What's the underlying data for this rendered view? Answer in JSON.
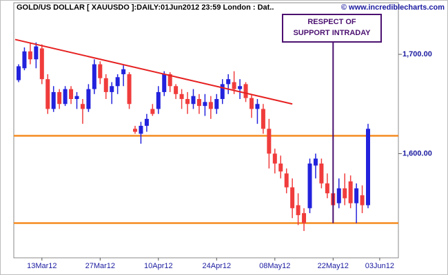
{
  "chart_data": {
    "type": "candlestick",
    "title": "GOLD/US DOLLAR [ XAUUSDO ]:DAILY:01Jun2012 23:59 London : Dat..",
    "subtitle": "© www.incrediblecharts.com",
    "categories": [
      null,
      null,
      null,
      null,
      "13Mar12",
      null,
      null,
      null,
      null,
      null,
      null,
      null,
      null,
      null,
      "27Mar12",
      null,
      null,
      null,
      null,
      null,
      null,
      null,
      null,
      null,
      "10Apr12",
      null,
      null,
      null,
      null,
      null,
      null,
      null,
      null,
      null,
      "24Apr12",
      null,
      null,
      null,
      null,
      null,
      null,
      null,
      null,
      null,
      "08May12",
      null,
      null,
      null,
      null,
      null,
      null,
      null,
      null,
      null,
      "22May12",
      null,
      null,
      null,
      null,
      null,
      null,
      null,
      "03Jun12"
    ],
    "open": [
      1674,
      1686,
      1703,
      1695,
      1706,
      1675,
      1645,
      1662,
      1650,
      1665,
      1655,
      1650,
      1645,
      1665,
      1690,
      1676,
      1662,
      1668,
      1680,
      1680,
      1625,
      1620,
      1628,
      1645,
      1645,
      1662,
      1680,
      1668,
      1660,
      1655,
      1650,
      1655,
      1648,
      1652,
      1645,
      1655,
      1670,
      1672,
      1665,
      1670,
      1656,
      1645,
      1645,
      1625,
      1600,
      1590,
      1580,
      1566,
      1548,
      1540,
      1545,
      1588,
      1590,
      1570,
      1560,
      1550,
      1565,
      1572,
      1550,
      1558,
      1548,
      null,
      null
    ],
    "high": [
      1690,
      1707,
      1712,
      1712,
      1710,
      1680,
      1668,
      1665,
      1668,
      1668,
      1662,
      1655,
      1670,
      1695,
      1693,
      1680,
      1672,
      1680,
      1690,
      1682,
      1628,
      1632,
      1640,
      1650,
      1668,
      1683,
      1682,
      1670,
      1665,
      1662,
      1665,
      1660,
      1660,
      1658,
      1660,
      1675,
      1680,
      1683,
      1675,
      1672,
      1660,
      1655,
      1650,
      1635,
      1605,
      1598,
      1585,
      1575,
      1560,
      1545,
      1595,
      1600,
      1595,
      1580,
      1575,
      1575,
      1580,
      1578,
      1570,
      1568,
      1630,
      null,
      null
    ],
    "low": [
      1672,
      1684,
      1690,
      1686,
      1670,
      1640,
      1642,
      1645,
      1648,
      1650,
      1645,
      1630,
      1642,
      1660,
      1670,
      1655,
      1650,
      1660,
      1668,
      1645,
      1620,
      1610,
      1622,
      1638,
      1640,
      1658,
      1662,
      1655,
      1645,
      1640,
      1645,
      1640,
      1638,
      1635,
      1640,
      1650,
      1660,
      1660,
      1655,
      1652,
      1636,
      1630,
      1620,
      1585,
      1580,
      1575,
      1560,
      1535,
      1528,
      1522,
      1540,
      1575,
      1565,
      1555,
      1530,
      1545,
      1548,
      1545,
      1530,
      1540,
      1545,
      null,
      null
    ],
    "close": [
      1688,
      1703,
      1695,
      1708,
      1675,
      1645,
      1662,
      1650,
      1665,
      1655,
      1658,
      1645,
      1665,
      1690,
      1676,
      1662,
      1668,
      1677,
      1685,
      1650,
      1622,
      1628,
      1635,
      1640,
      1662,
      1680,
      1668,
      1660,
      1655,
      1650,
      1658,
      1648,
      1652,
      1645,
      1655,
      1670,
      1675,
      1665,
      1668,
      1656,
      1645,
      1650,
      1625,
      1600,
      1590,
      1582,
      1566,
      1545,
      1538,
      1530,
      1590,
      1595,
      1570,
      1560,
      1548,
      1565,
      1555,
      1550,
      1565,
      1548,
      1625,
      null,
      null
    ],
    "up_color": "#2222dd",
    "down_color": "#f03c3c",
    "ylim": [
      1495,
      1752
    ],
    "yticks": [
      {
        "value": 1700,
        "label": "1,700.00"
      },
      {
        "value": 1600,
        "label": "1,600.00"
      }
    ],
    "trendline": {
      "x": [
        -0.6,
        47
      ],
      "y": [
        1715,
        1650
      ],
      "color": "#e62020"
    },
    "hlines": {
      "values": [
        1618,
        1530
      ],
      "color": "#f58a1f"
    },
    "annotation": {
      "lines": [
        "RESPECT OF",
        "SUPPORT INTRADAY"
      ],
      "x": 54,
      "y": 1530,
      "color": "#4b1070"
    }
  }
}
